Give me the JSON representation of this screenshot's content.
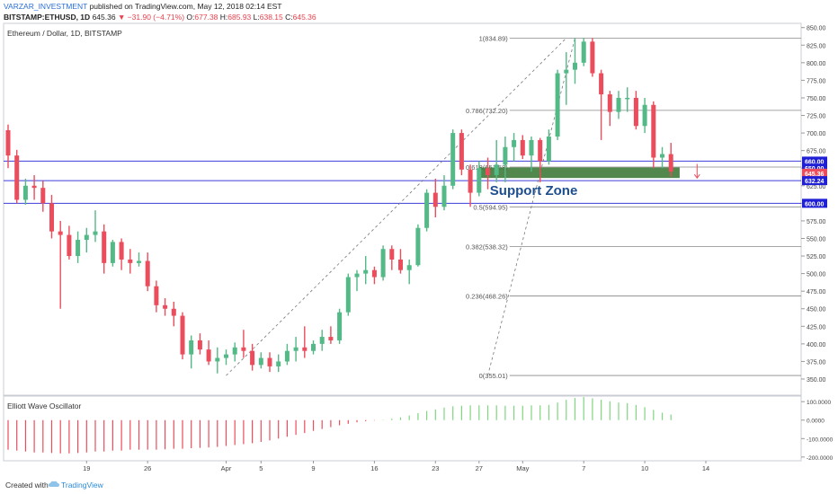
{
  "header": {
    "author": "VARZAR_INVESTMENT",
    "published": "published on TradingView.com, May 12, 2018 02:14 EST",
    "symbol": "BITSTAMP:ETHUSD, 1D",
    "last": "645.36",
    "change": "▼ −31.90 (−4.71%)",
    "ohlc_o_label": "O:",
    "ohlc_o": "677.38",
    "ohlc_h_label": "H:",
    "ohlc_h": "685.93",
    "ohlc_l_label": "L:",
    "ohlc_l": "638.15",
    "ohlc_c_label": "C:",
    "ohlc_c": "645.36"
  },
  "footer": {
    "created_with": "Created with",
    "brand": "TradingView"
  },
  "chart_data": {
    "type": "bar",
    "title": "Ethereum / Dollar, 1D, BITSTAMP",
    "colors": {
      "up": "#53b987",
      "down": "#eb4d5c",
      "line": "#3d3ddb",
      "zone": "#3f7a3a",
      "label_bg": "#1f1fd6"
    },
    "price_axis": {
      "min": 327,
      "max": 856,
      "ticks": [
        "350.00",
        "375.00",
        "400.00",
        "425.00",
        "450.00",
        "475.00",
        "500.00",
        "525.00",
        "550.00",
        "575.00",
        "600.00",
        "625.00",
        "650.00",
        "675.00",
        "700.00",
        "725.00",
        "750.00",
        "775.00",
        "800.00",
        "825.00",
        "850.00"
      ]
    },
    "x_labels": [
      {
        "day": 9,
        "label": "19"
      },
      {
        "day": 16,
        "label": "26"
      },
      {
        "day": 25,
        "label": "Apr"
      },
      {
        "day": 29,
        "label": "5"
      },
      {
        "day": 35,
        "label": "9"
      },
      {
        "day": 42,
        "label": "16"
      },
      {
        "day": 49,
        "label": "23"
      },
      {
        "day": 54,
        "label": "27"
      },
      {
        "day": 59,
        "label": "May"
      },
      {
        "day": 66,
        "label": "7"
      },
      {
        "day": 73,
        "label": "10"
      },
      {
        "day": 80,
        "label": "14"
      }
    ],
    "candles": [
      [
        704,
        712,
        650,
        668
      ],
      [
        668,
        676,
        600,
        605
      ],
      [
        605,
        635,
        598,
        625
      ],
      [
        625,
        640,
        605,
        622
      ],
      [
        622,
        632,
        588,
        600
      ],
      [
        600,
        612,
        550,
        560
      ],
      [
        560,
        575,
        450,
        555
      ],
      [
        555,
        568,
        520,
        525
      ],
      [
        525,
        560,
        515,
        548
      ],
      [
        548,
        565,
        530,
        555
      ],
      [
        555,
        590,
        545,
        560
      ],
      [
        560,
        570,
        500,
        515
      ],
      [
        515,
        548,
        510,
        545
      ],
      [
        545,
        550,
        505,
        520
      ],
      [
        520,
        535,
        500,
        515
      ],
      [
        515,
        530,
        510,
        518
      ],
      [
        518,
        530,
        475,
        482
      ],
      [
        482,
        490,
        445,
        455
      ],
      [
        455,
        465,
        440,
        450
      ],
      [
        450,
        460,
        425,
        440
      ],
      [
        440,
        445,
        378,
        385
      ],
      [
        385,
        412,
        365,
        405
      ],
      [
        405,
        415,
        385,
        392
      ],
      [
        392,
        405,
        370,
        375
      ],
      [
        375,
        395,
        358,
        380
      ],
      [
        380,
        392,
        370,
        385
      ],
      [
        385,
        402,
        375,
        395
      ],
      [
        395,
        420,
        380,
        390
      ],
      [
        390,
        400,
        362,
        370
      ],
      [
        370,
        388,
        365,
        380
      ],
      [
        380,
        388,
        360,
        368
      ],
      [
        368,
        385,
        360,
        375
      ],
      [
        375,
        400,
        370,
        390
      ],
      [
        390,
        410,
        375,
        395
      ],
      [
        395,
        425,
        380,
        390
      ],
      [
        390,
        405,
        385,
        400
      ],
      [
        400,
        420,
        390,
        410
      ],
      [
        410,
        425,
        400,
        405
      ],
      [
        405,
        450,
        400,
        445
      ],
      [
        445,
        500,
        440,
        495
      ],
      [
        495,
        505,
        475,
        500
      ],
      [
        500,
        525,
        485,
        505
      ],
      [
        505,
        510,
        485,
        495
      ],
      [
        495,
        540,
        490,
        535
      ],
      [
        535,
        540,
        505,
        520
      ],
      [
        520,
        535,
        500,
        505
      ],
      [
        505,
        520,
        485,
        512
      ],
      [
        512,
        570,
        510,
        565
      ],
      [
        565,
        620,
        560,
        615
      ],
      [
        615,
        635,
        580,
        595
      ],
      [
        595,
        640,
        590,
        625
      ],
      [
        625,
        705,
        620,
        700
      ],
      [
        700,
        705,
        640,
        648
      ],
      [
        648,
        655,
        595,
        615
      ],
      [
        615,
        660,
        610,
        650
      ],
      [
        650,
        665,
        620,
        640
      ],
      [
        640,
        690,
        630,
        655
      ],
      [
        655,
        695,
        630,
        680
      ],
      [
        680,
        700,
        660,
        690
      ],
      [
        690,
        697,
        663,
        668
      ],
      [
        668,
        695,
        645,
        690
      ],
      [
        690,
        693,
        630,
        660
      ],
      [
        660,
        705,
        655,
        695
      ],
      [
        695,
        790,
        690,
        785
      ],
      [
        785,
        815,
        740,
        790
      ],
      [
        790,
        835,
        770,
        800
      ],
      [
        800,
        835,
        795,
        830
      ],
      [
        830,
        835,
        780,
        785
      ],
      [
        785,
        790,
        690,
        755
      ],
      [
        755,
        760,
        710,
        730
      ],
      [
        730,
        760,
        720,
        750
      ],
      [
        750,
        765,
        730,
        750
      ],
      [
        750,
        760,
        705,
        710
      ],
      [
        710,
        750,
        700,
        740
      ],
      [
        740,
        745,
        650,
        665
      ],
      [
        665,
        680,
        650,
        670
      ],
      [
        670,
        686,
        638,
        645
      ]
    ],
    "fib_levels": [
      {
        "label": "1(834.89)",
        "price": 834.89
      },
      {
        "label": "0.786(732.20)",
        "price": 732.2
      },
      {
        "label": "0.618(651.58)",
        "price": 651.58
      },
      {
        "label": "0.5(594.95)",
        "price": 594.95
      },
      {
        "label": "0.382(538.32)",
        "price": 538.32
      },
      {
        "label": "0.236(468.26)",
        "price": 468.26
      },
      {
        "label": "0(355.01)",
        "price": 355.01
      }
    ],
    "horizontal_lines": [
      660,
      632.24,
      600
    ],
    "price_labels": [
      {
        "text": "660.00",
        "price": 660,
        "style": "line"
      },
      {
        "text": "650.00",
        "price": 650,
        "style": "line"
      },
      {
        "text": "645.36",
        "price": 645.36,
        "style": "last"
      },
      {
        "text": "632.24",
        "price": 632.24,
        "style": "line"
      },
      {
        "text": "600.00",
        "price": 600,
        "style": "line"
      }
    ],
    "support_zone": {
      "label": "Support Zone",
      "from_day": 54,
      "to_day": 77,
      "low": 636,
      "high": 651
    },
    "arrow": {
      "day": 79,
      "from": 656,
      "to": 636
    },
    "trend_lines": [
      {
        "from_day": 25,
        "from_price": 355,
        "to_day": 64,
        "to_price": 835
      },
      {
        "from_day": 55,
        "from_price": 355,
        "to_day": 65,
        "to_price": 835
      }
    ],
    "oscillator": {
      "title": "Elliott Wave Oscillator",
      "min": -220,
      "max": 130,
      "ticks": [
        "100.0000",
        "0.0000",
        "-100.0000",
        "-200.0000"
      ],
      "values": [
        -160,
        -165,
        -170,
        -175,
        -175,
        -178,
        -180,
        -180,
        -178,
        -175,
        -170,
        -170,
        -165,
        -165,
        -160,
        -160,
        -160,
        -160,
        -158,
        -155,
        -155,
        -152,
        -150,
        -148,
        -145,
        -140,
        -135,
        -130,
        -125,
        -118,
        -110,
        -100,
        -90,
        -80,
        -70,
        -58,
        -48,
        -38,
        -28,
        -20,
        -12,
        -6,
        -2,
        2,
        8,
        15,
        25,
        38,
        50,
        58,
        68,
        75,
        78,
        80,
        80,
        80,
        80,
        78,
        78,
        78,
        80,
        80,
        82,
        95,
        110,
        120,
        125,
        118,
        110,
        102,
        95,
        92,
        82,
        70,
        55,
        40,
        30
      ]
    }
  }
}
